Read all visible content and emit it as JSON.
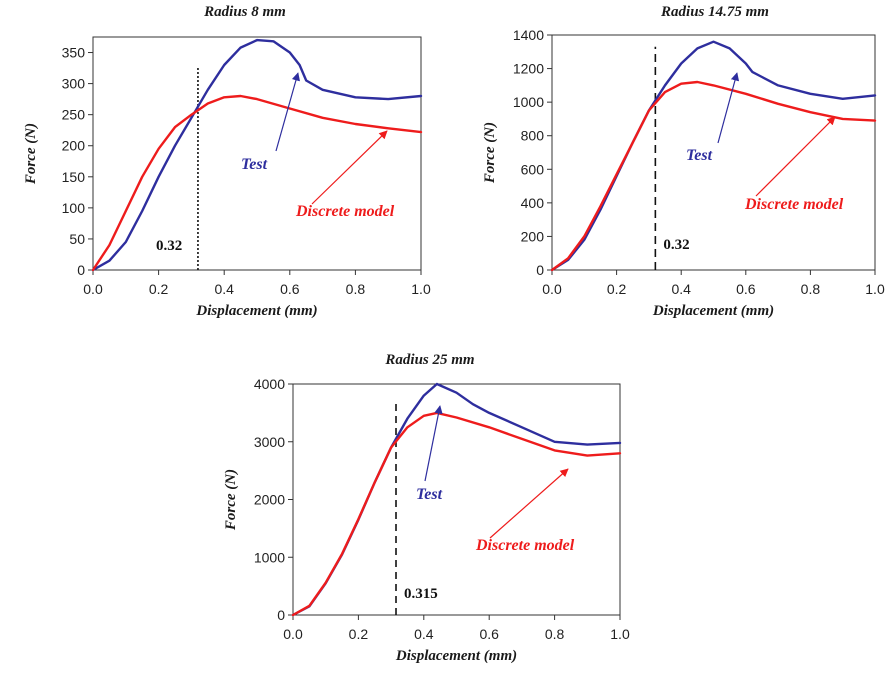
{
  "colors": {
    "test": "#2e2e9e",
    "model": "#ee1c1c",
    "axis": "#333333"
  },
  "chart_data": [
    {
      "type": "line",
      "title": "Radius 8 mm",
      "xlabel": "Displacement (mm)",
      "ylabel": "Force (N)",
      "xlim": [
        0,
        1.0
      ],
      "ylim": [
        0,
        375
      ],
      "xticks": [
        0.0,
        0.2,
        0.4,
        0.6,
        0.8,
        1.0
      ],
      "xtick_labels": [
        "0.0",
        "0.2",
        "0.4",
        "0.6",
        "0.8",
        "1.0"
      ],
      "yticks": [
        0,
        50,
        100,
        150,
        200,
        250,
        300,
        350
      ],
      "ytick_labels": [
        "0",
        "50",
        "100",
        "150",
        "200",
        "250",
        "300",
        "350"
      ],
      "vline": {
        "x": 0.32,
        "label": "0.32"
      },
      "series": [
        {
          "name": "Test",
          "x": [
            0,
            0.05,
            0.1,
            0.15,
            0.2,
            0.25,
            0.3,
            0.35,
            0.4,
            0.45,
            0.5,
            0.55,
            0.6,
            0.63,
            0.65,
            0.7,
            0.8,
            0.9,
            1.0
          ],
          "y": [
            0,
            15,
            45,
            95,
            150,
            200,
            245,
            290,
            330,
            358,
            370,
            368,
            350,
            330,
            305,
            290,
            278,
            275,
            280
          ]
        },
        {
          "name": "Discrete model",
          "x": [
            0,
            0.05,
            0.1,
            0.15,
            0.2,
            0.25,
            0.3,
            0.35,
            0.4,
            0.45,
            0.5,
            0.6,
            0.7,
            0.8,
            0.9,
            1.0
          ],
          "y": [
            0,
            40,
            95,
            150,
            195,
            230,
            250,
            268,
            278,
            280,
            275,
            260,
            245,
            235,
            228,
            222
          ]
        }
      ]
    },
    {
      "type": "line",
      "title": "Radius 14.75 mm",
      "xlabel": "Displacement (mm)",
      "ylabel": "Force (N)",
      "xlim": [
        0,
        1.0
      ],
      "ylim": [
        0,
        1400
      ],
      "xticks": [
        0.0,
        0.2,
        0.4,
        0.6,
        0.8,
        1.0
      ],
      "xtick_labels": [
        "0.0",
        "0.2",
        "0.4",
        "0.6",
        "0.8",
        "1.0"
      ],
      "yticks": [
        0,
        200,
        400,
        600,
        800,
        1000,
        1200,
        1400
      ],
      "ytick_labels": [
        "0",
        "200",
        "400",
        "600",
        "800",
        "1000",
        "1200",
        "1400"
      ],
      "vline": {
        "x": 0.32,
        "label": "0.32"
      },
      "series": [
        {
          "name": "Test",
          "x": [
            0,
            0.05,
            0.1,
            0.15,
            0.2,
            0.25,
            0.3,
            0.35,
            0.4,
            0.45,
            0.5,
            0.55,
            0.6,
            0.62,
            0.65,
            0.7,
            0.8,
            0.9,
            1.0
          ],
          "y": [
            0,
            60,
            180,
            360,
            560,
            760,
            950,
            1100,
            1230,
            1320,
            1360,
            1320,
            1230,
            1180,
            1150,
            1100,
            1050,
            1020,
            1040
          ]
        },
        {
          "name": "Discrete model",
          "x": [
            0,
            0.05,
            0.1,
            0.15,
            0.2,
            0.25,
            0.3,
            0.35,
            0.4,
            0.45,
            0.5,
            0.6,
            0.7,
            0.8,
            0.9,
            1.0
          ],
          "y": [
            0,
            70,
            200,
            380,
            570,
            760,
            950,
            1060,
            1110,
            1120,
            1100,
            1050,
            990,
            940,
            900,
            890
          ]
        }
      ]
    },
    {
      "type": "line",
      "title": "Radius 25 mm",
      "xlabel": "Displacement (mm)",
      "ylabel": "Force (N)",
      "xlim": [
        0,
        1.0
      ],
      "ylim": [
        0,
        4000
      ],
      "xticks": [
        0.0,
        0.2,
        0.4,
        0.6,
        0.8,
        1.0
      ],
      "xtick_labels": [
        "0.0",
        "0.2",
        "0.4",
        "0.6",
        "0.8",
        "1.0"
      ],
      "yticks": [
        0,
        1000,
        2000,
        3000,
        4000
      ],
      "ytick_labels": [
        "0",
        "1000",
        "2000",
        "3000",
        "4000"
      ],
      "vline": {
        "x": 0.315,
        "label": "0.315"
      },
      "series": [
        {
          "name": "Test",
          "x": [
            0,
            0.05,
            0.1,
            0.15,
            0.2,
            0.25,
            0.3,
            0.35,
            0.4,
            0.44,
            0.5,
            0.55,
            0.6,
            0.7,
            0.8,
            0.9,
            1.0
          ],
          "y": [
            0,
            150,
            550,
            1050,
            1650,
            2300,
            2900,
            3400,
            3800,
            4000,
            3850,
            3650,
            3500,
            3250,
            3000,
            2950,
            2980
          ]
        },
        {
          "name": "Discrete model",
          "x": [
            0,
            0.05,
            0.1,
            0.15,
            0.2,
            0.25,
            0.3,
            0.35,
            0.4,
            0.44,
            0.5,
            0.6,
            0.7,
            0.8,
            0.9,
            1.0
          ],
          "y": [
            0,
            160,
            560,
            1060,
            1660,
            2300,
            2900,
            3250,
            3450,
            3500,
            3420,
            3250,
            3050,
            2850,
            2760,
            2800
          ]
        }
      ]
    }
  ],
  "annotations": [
    {
      "test_text": "Test",
      "model_text": "Discrete model"
    },
    {
      "test_text": "Test",
      "model_text": "Discrete model"
    },
    {
      "test_text": "Test",
      "model_text": "Discrete model"
    }
  ]
}
